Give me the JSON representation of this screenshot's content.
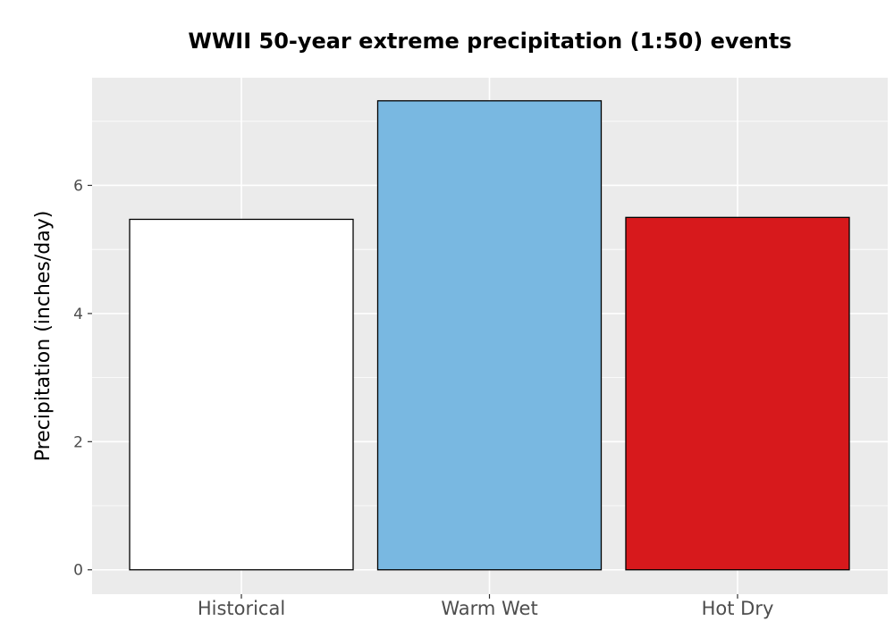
{
  "chart_data": {
    "type": "bar",
    "title": "WWII 50-year extreme precipitation (1:50) events",
    "xlabel": "",
    "ylabel": "Precipitation (inches/day)",
    "categories": [
      "Historical",
      "Warm Wet",
      "Hot Dry"
    ],
    "values": [
      5.47,
      7.32,
      5.5
    ],
    "bar_colors": [
      "#ffffff",
      "#79b8e1",
      "#d7191c"
    ],
    "bar_outline_color": "#000000",
    "ylim": [
      -0.38,
      7.68
    ],
    "y_ticks": [
      0,
      2,
      4,
      6
    ],
    "y_tick_labels": [
      "0",
      "2",
      "4",
      "6"
    ],
    "grid": true,
    "panel_background": "#ebebeb",
    "grid_color": "#ffffff",
    "legend": "none"
  }
}
